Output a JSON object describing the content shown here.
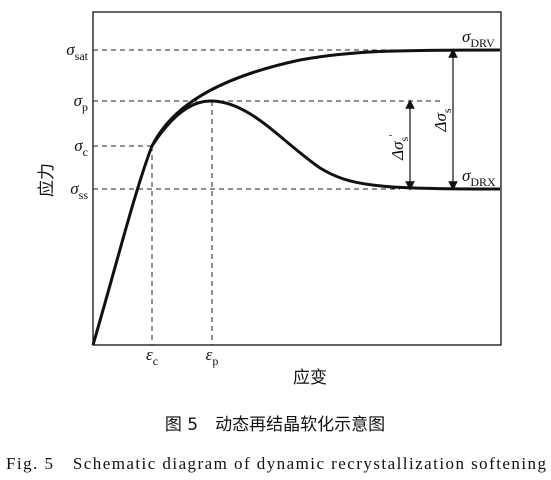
{
  "y_axis_label": "应力",
  "x_axis_label": "应变",
  "y_labels": [
    {
      "symbol": "σ",
      "sub": "sat"
    },
    {
      "symbol": "σ",
      "sub": "p"
    },
    {
      "symbol": "σ",
      "sub": "c"
    },
    {
      "symbol": "σ",
      "sub": "ss"
    }
  ],
  "x_labels": [
    {
      "symbol": "ε",
      "sub": "c"
    },
    {
      "symbol": "ε",
      "sub": "p"
    }
  ],
  "curve_labels": [
    {
      "symbol": "σ",
      "sub": "DRV"
    },
    {
      "symbol": "σ",
      "sub": "DRX"
    }
  ],
  "delta_labels": [
    {
      "symbol": "Δσ",
      "sub": "s",
      "sup": "′"
    },
    {
      "symbol": "Δσ",
      "sub": "s"
    }
  ],
  "caption": {
    "cn": "图 5　动态再结晶软化示意图",
    "en": "Fig. 5　Schematic diagram of dynamic recrystallization softening"
  }
}
